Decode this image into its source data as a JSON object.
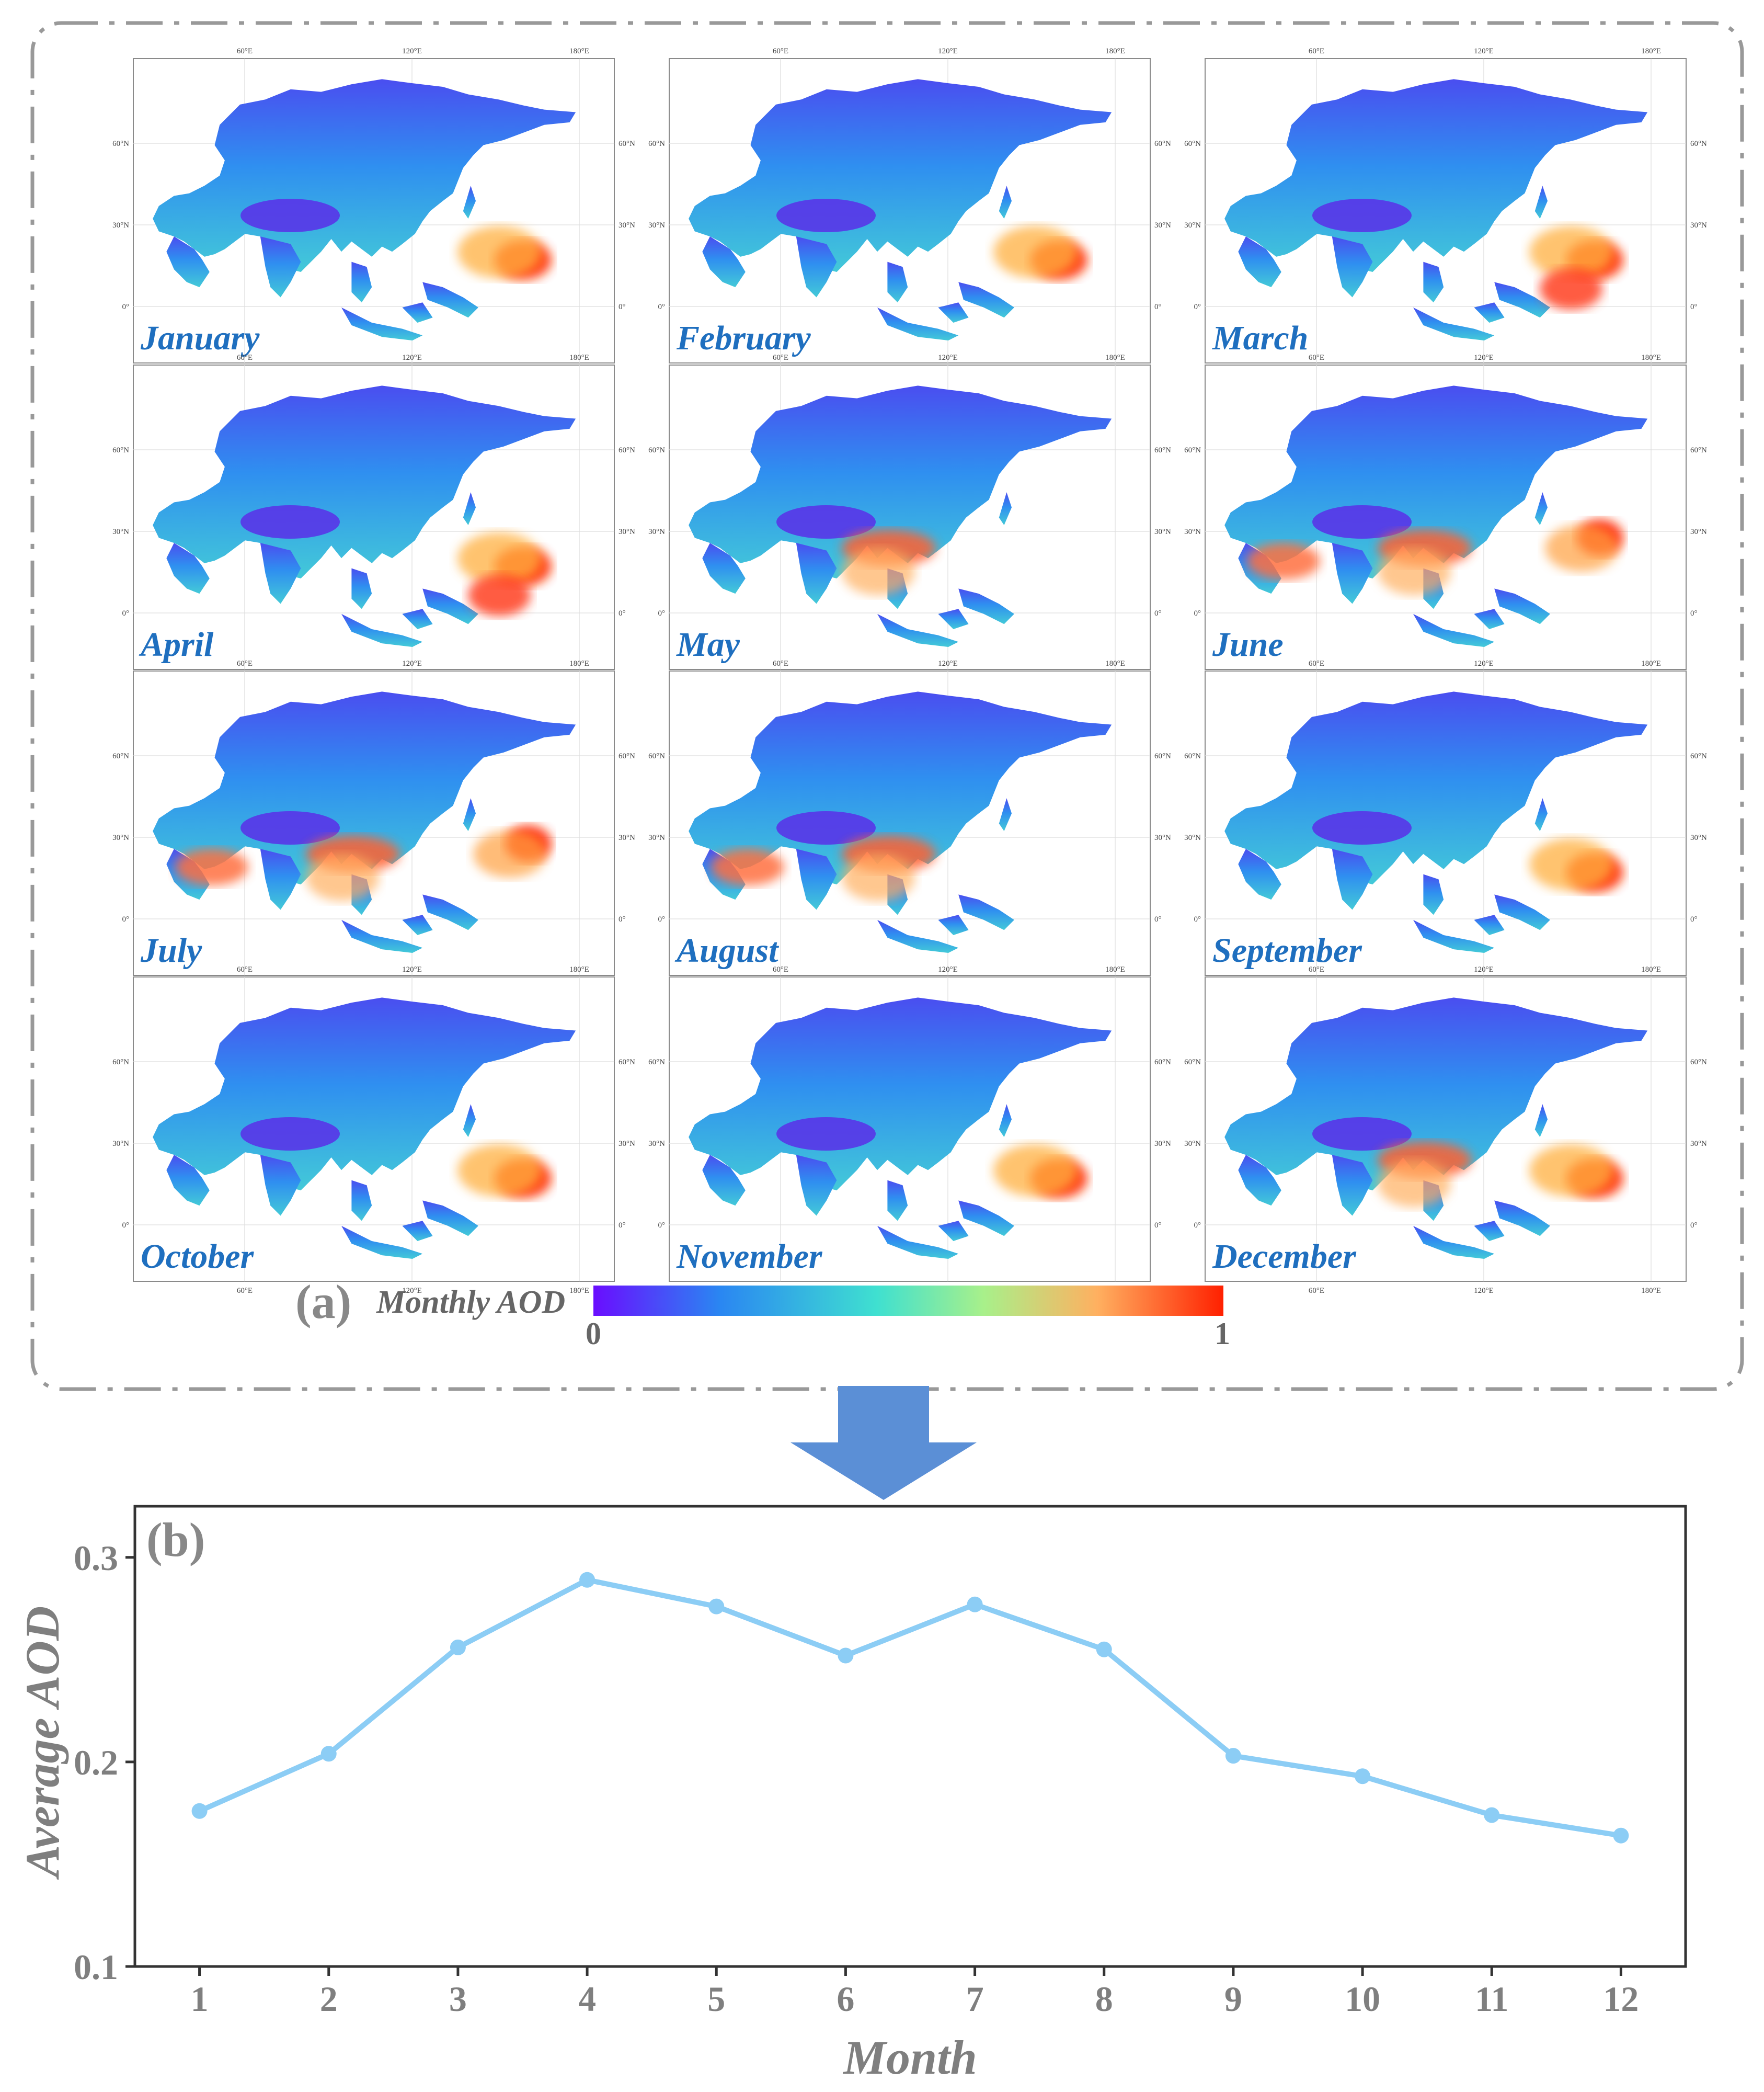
{
  "panel_a": {
    "label": "(a)",
    "maps": [
      {
        "month": "January",
        "hotspots": [
          "east-china"
        ]
      },
      {
        "month": "February",
        "hotspots": [
          "east-china"
        ]
      },
      {
        "month": "March",
        "hotspots": [
          "east-china",
          "southeast-asia"
        ]
      },
      {
        "month": "April",
        "hotspots": [
          "east-china",
          "southeast-asia"
        ]
      },
      {
        "month": "May",
        "hotspots": [
          "india"
        ]
      },
      {
        "month": "June",
        "hotspots": [
          "north-china",
          "india",
          "arabia"
        ]
      },
      {
        "month": "July",
        "hotspots": [
          "north-china",
          "india",
          "arabia"
        ]
      },
      {
        "month": "August",
        "hotspots": [
          "india",
          "arabia"
        ]
      },
      {
        "month": "September",
        "hotspots": [
          "east-china"
        ]
      },
      {
        "month": "October",
        "hotspots": [
          "east-china"
        ]
      },
      {
        "month": "November",
        "hotspots": [
          "east-china"
        ]
      },
      {
        "month": "December",
        "hotspots": [
          "east-china",
          "india"
        ]
      }
    ],
    "lon_ticks": [
      "60°E",
      "120°E",
      "180°E"
    ],
    "lat_ticks": [
      "60°N",
      "30°N",
      "0°"
    ],
    "colorbar": {
      "title": "Monthly AOD",
      "min_label": "0",
      "max_label": "1",
      "colors": [
        "#6a0dff",
        "#2a86f2",
        "#3fe0d0",
        "#a8f08a",
        "#ffb060",
        "#ff2000"
      ]
    }
  },
  "chart_data": {
    "type": "line",
    "panel_label": "(b)",
    "x": [
      1,
      2,
      3,
      4,
      5,
      6,
      7,
      8,
      9,
      10,
      11,
      12
    ],
    "values": [
      0.176,
      0.204,
      0.256,
      0.289,
      0.276,
      0.252,
      0.277,
      0.255,
      0.203,
      0.193,
      0.174,
      0.164
    ],
    "xlabel": "Month",
    "ylabel": "Average AOD",
    "x_tick_labels": [
      "1",
      "2",
      "3",
      "4",
      "5",
      "6",
      "7",
      "8",
      "9",
      "10",
      "11",
      "12"
    ],
    "y_ticks": [
      0.1,
      0.2,
      0.3
    ],
    "y_tick_labels": [
      "0.1",
      "0.2",
      "0.3"
    ],
    "xlim": [
      0.5,
      12.5
    ],
    "ylim": [
      0.1,
      0.325
    ],
    "line_color": "#8ccdf5",
    "grid": false
  },
  "style": {
    "frame_color": "#999999",
    "arrow_color": "#5b8fd6",
    "label_blue": "#1f6fbf",
    "axis_text": "#7f7f7f"
  }
}
